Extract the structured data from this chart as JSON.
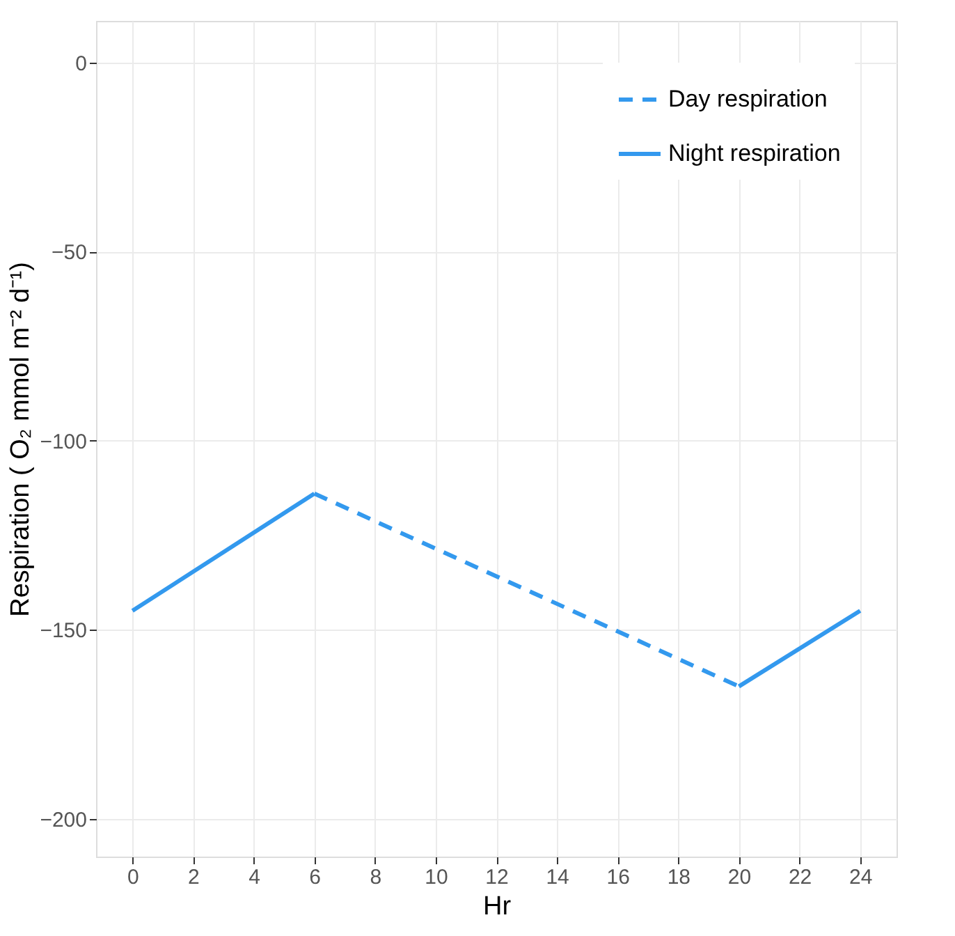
{
  "chart_data": {
    "type": "line",
    "xlabel": "Hr",
    "ylabel": "Respiration ( O₂ mmol m⁻² d⁻¹)",
    "xlim": [
      -1.2,
      25.2
    ],
    "xticks": [
      0,
      2,
      4,
      6,
      8,
      10,
      12,
      14,
      16,
      18,
      20,
      22,
      24
    ],
    "ylim": [
      -210,
      11
    ],
    "yticks": [
      0,
      -50,
      -100,
      -150,
      -200
    ],
    "grid": true,
    "legend": "top right",
    "series": [
      {
        "name": "Day respiration",
        "color": "#3399ee",
        "line_style": "dashed",
        "x": [
          6,
          20
        ],
        "values": [
          -114,
          -165
        ]
      },
      {
        "name": "Night respiration",
        "color": "#3399ee",
        "line_style": "solid",
        "x": [
          0,
          6,
          13,
          20,
          24
        ],
        "values": [
          -145,
          -114,
          null,
          -165,
          -145
        ]
      }
    ]
  }
}
